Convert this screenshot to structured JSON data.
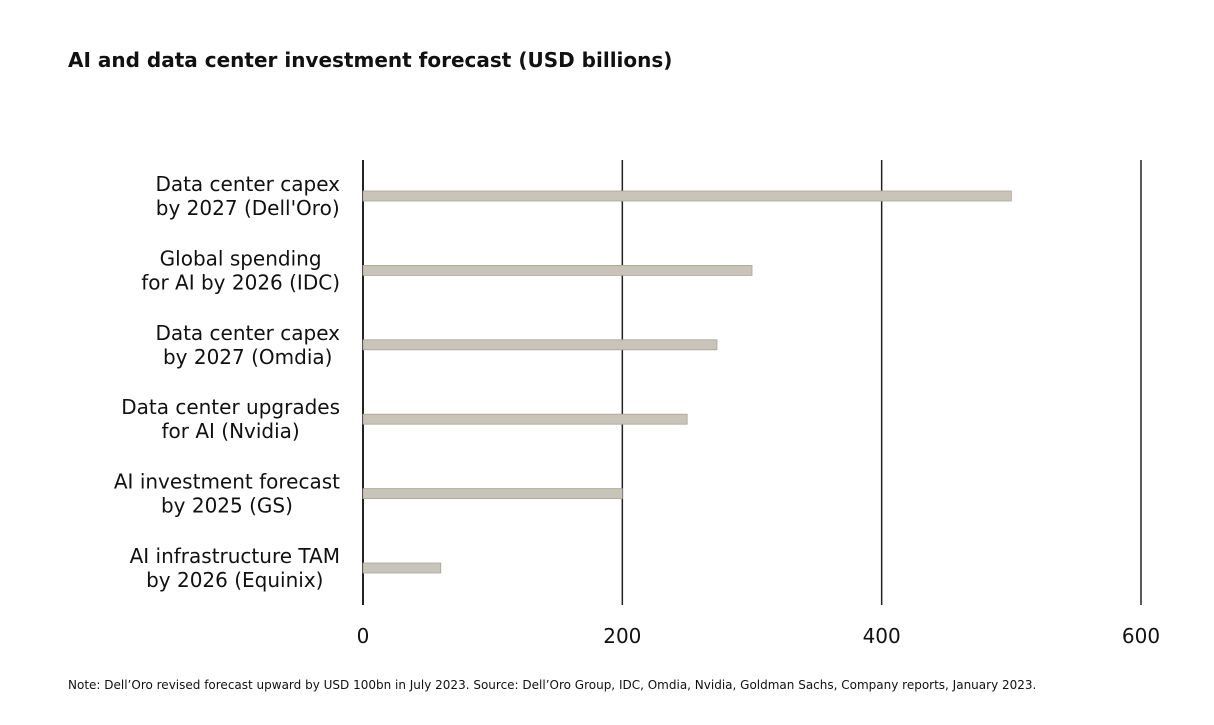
{
  "chart_data": {
    "type": "bar",
    "orientation": "horizontal",
    "title": "AI and data center investment forecast (USD billions)",
    "categories": [
      [
        "Data center capex",
        "by 2027 (Dell'Oro)"
      ],
      [
        "Global spending",
        "for AI by 2026 (IDC)"
      ],
      [
        "Data center capex",
        "by 2027 (Omdia)"
      ],
      [
        "Data center upgrades",
        "for AI (Nvidia)"
      ],
      [
        "AI investment forecast",
        "by 2025 (GS)"
      ],
      [
        "AI infrastructure TAM",
        "by 2026 (Equinix)"
      ]
    ],
    "values": [
      500,
      300,
      273,
      250,
      200,
      60
    ],
    "xlim": [
      0,
      600
    ],
    "xticks": [
      "0",
      "200",
      "400",
      "600"
    ],
    "xtick_values": [
      0,
      200,
      400,
      600
    ],
    "grid": "vertical",
    "bar_color": "#c8c4b7",
    "bar_edge_color": "#a8a496",
    "gridline_color": "#222222"
  },
  "note": "Note: Dell’Oro revised forecast upward by USD 100bn in July 2023. Source: Dell’Oro Group, IDC, Omdia, Nvidia, Goldman Sachs, Company reports, January 2023."
}
